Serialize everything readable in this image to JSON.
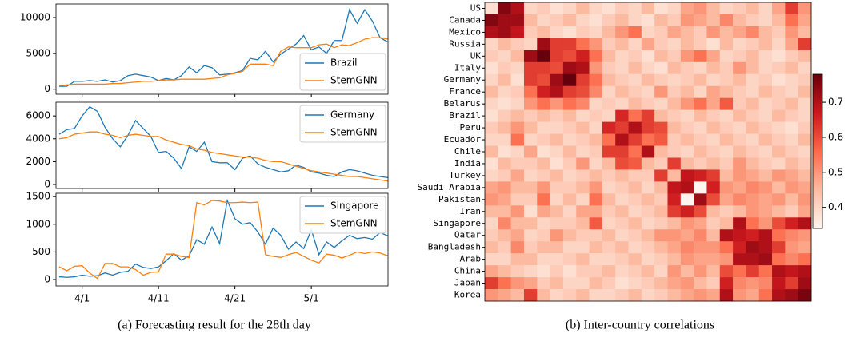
{
  "chart_data": [
    {
      "type": "line",
      "legend": "lower right",
      "ylim": [
        -700,
        11900
      ],
      "yticks": [
        0,
        5000,
        10000
      ],
      "x": [
        "3/29",
        "3/30",
        "3/31",
        "4/1",
        "4/2",
        "4/3",
        "4/4",
        "4/5",
        "4/6",
        "4/7",
        "4/8",
        "4/9",
        "4/10",
        "4/11",
        "4/12",
        "4/13",
        "4/14",
        "4/15",
        "4/16",
        "4/17",
        "4/18",
        "4/19",
        "4/20",
        "4/21",
        "4/22",
        "4/23",
        "4/24",
        "4/25",
        "4/26",
        "4/27",
        "4/28",
        "4/29",
        "4/30",
        "5/1",
        "5/2",
        "5/3",
        "5/4",
        "5/5",
        "5/6",
        "5/7",
        "5/8",
        "5/9",
        "5/10",
        "5/11"
      ],
      "series": [
        {
          "name": "Brazil",
          "color": "#1f77b4",
          "values": [
            400,
            400,
            1100,
            1100,
            1200,
            1100,
            1300,
            1000,
            1200,
            1900,
            2100,
            1900,
            1700,
            1200,
            1500,
            1300,
            1900,
            3100,
            2300,
            3300,
            3000,
            2000,
            2100,
            2300,
            2600,
            4300,
            4100,
            5300,
            3800,
            4900,
            5600,
            6300,
            7500,
            5500,
            5900,
            5000,
            6800,
            6800,
            11100,
            9200,
            11100,
            9500,
            7200,
            6600
          ]
        },
        {
          "name": "StemGNN",
          "color": "#ff7f0e",
          "values": [
            500,
            600,
            700,
            700,
            700,
            700,
            700,
            800,
            800,
            900,
            1000,
            1100,
            1100,
            1200,
            1300,
            1300,
            1400,
            1400,
            1400,
            1400,
            1500,
            1600,
            2000,
            2200,
            2500,
            3500,
            3500,
            3500,
            3300,
            5300,
            5900,
            5800,
            5800,
            5800,
            6200,
            6300,
            5800,
            6200,
            6100,
            6500,
            7000,
            7200,
            7200,
            7000
          ]
        }
      ]
    },
    {
      "type": "line",
      "legend": "upper right",
      "ylim": [
        -350,
        7200
      ],
      "yticks": [
        0,
        2000,
        4000,
        6000
      ],
      "x": [
        "3/29",
        "3/30",
        "3/31",
        "4/1",
        "4/2",
        "4/3",
        "4/4",
        "4/5",
        "4/6",
        "4/7",
        "4/8",
        "4/9",
        "4/10",
        "4/11",
        "4/12",
        "4/13",
        "4/14",
        "4/15",
        "4/16",
        "4/17",
        "4/18",
        "4/19",
        "4/20",
        "4/21",
        "4/22",
        "4/23",
        "4/24",
        "4/25",
        "4/26",
        "4/27",
        "4/28",
        "4/29",
        "4/30",
        "5/1",
        "5/2",
        "5/3",
        "5/4",
        "5/5",
        "5/6",
        "5/7",
        "5/8",
        "5/9",
        "5/10",
        "5/11"
      ],
      "series": [
        {
          "name": "Germany",
          "color": "#1f77b4",
          "values": [
            4400,
            4800,
            4900,
            6000,
            6800,
            6400,
            5000,
            4000,
            3300,
            4300,
            5600,
            4900,
            4200,
            2800,
            2900,
            2300,
            1400,
            3300,
            2900,
            3700,
            2000,
            1900,
            1900,
            1300,
            2300,
            2500,
            1800,
            1500,
            1300,
            1100,
            1200,
            1700,
            1500,
            1100,
            1000,
            800,
            700,
            1100,
            1300,
            1200,
            1000,
            800,
            700,
            600
          ]
        },
        {
          "name": "StemGNN",
          "color": "#ff7f0e",
          "values": [
            4000,
            4100,
            4400,
            4500,
            4600,
            4600,
            4400,
            4300,
            4100,
            4300,
            4400,
            4300,
            4200,
            4200,
            3900,
            3700,
            3500,
            3400,
            3100,
            3000,
            2800,
            2700,
            2600,
            2500,
            2400,
            2400,
            2300,
            2100,
            2000,
            2000,
            1800,
            1600,
            1400,
            1200,
            1100,
            1000,
            900,
            800,
            700,
            700,
            600,
            500,
            400,
            300
          ]
        }
      ]
    },
    {
      "type": "line",
      "legend": "upper right",
      "ylim": [
        -115,
        1560
      ],
      "yticks": [
        0,
        500,
        1000,
        1500
      ],
      "xticks": [
        "4/1",
        "4/11",
        "4/21",
        "5/1"
      ],
      "x": [
        "3/29",
        "3/30",
        "3/31",
        "4/1",
        "4/2",
        "4/3",
        "4/4",
        "4/5",
        "4/6",
        "4/7",
        "4/8",
        "4/9",
        "4/10",
        "4/11",
        "4/12",
        "4/13",
        "4/14",
        "4/15",
        "4/16",
        "4/17",
        "4/18",
        "4/19",
        "4/20",
        "4/21",
        "4/22",
        "4/23",
        "4/24",
        "4/25",
        "4/26",
        "4/27",
        "4/28",
        "4/29",
        "4/30",
        "5/1",
        "5/2",
        "5/3",
        "5/4",
        "5/5",
        "5/6",
        "5/7",
        "5/8",
        "5/9",
        "5/10",
        "5/11"
      ],
      "series": [
        {
          "name": "Singapore",
          "color": "#1f77b4",
          "values": [
            50,
            40,
            50,
            80,
            60,
            70,
            120,
            80,
            130,
            150,
            280,
            220,
            200,
            230,
            340,
            470,
            350,
            430,
            720,
            640,
            950,
            650,
            1430,
            1100,
            1000,
            1030,
            860,
            640,
            930,
            800,
            550,
            680,
            560,
            900,
            450,
            680,
            580,
            700,
            800,
            740,
            760,
            730,
            850,
            790
          ]
        },
        {
          "name": "StemGNN",
          "color": "#ff7f0e",
          "values": [
            230,
            160,
            240,
            250,
            120,
            20,
            290,
            290,
            230,
            230,
            180,
            80,
            130,
            140,
            460,
            460,
            420,
            400,
            1390,
            1350,
            1430,
            1420,
            1390,
            1390,
            1400,
            1390,
            1400,
            450,
            420,
            400,
            450,
            490,
            420,
            350,
            300,
            460,
            440,
            390,
            440,
            500,
            470,
            500,
            480,
            430
          ]
        }
      ]
    },
    {
      "type": "heatmap",
      "colormap": "Reds",
      "vlim": [
        0.34,
        0.78
      ],
      "colorbar_ticks": [
        0.4,
        0.5,
        0.6,
        0.7
      ],
      "rows": [
        "US",
        "Canada",
        "Mexico",
        "Russia",
        "UK",
        "Italy",
        "Germany",
        "France",
        "Belarus",
        "Brazil",
        "Peru",
        "Ecuador",
        "Chile",
        "India",
        "Turkey",
        "Saudi Arabia",
        "Pakistan",
        "Iran",
        "Singapore",
        "Qatar",
        "Bangladesh",
        "Arab",
        "China",
        "Japan",
        "Korea"
      ],
      "values": [
        [
          0.38,
          0.75,
          0.7,
          0.4,
          0.42,
          0.38,
          0.4,
          0.45,
          0.4,
          0.38,
          0.42,
          0.4,
          0.45,
          0.38,
          0.4,
          0.48,
          0.5,
          0.45,
          0.4,
          0.42,
          0.45,
          0.4,
          0.48,
          0.62,
          0.5
        ],
        [
          0.75,
          0.72,
          0.72,
          0.45,
          0.4,
          0.42,
          0.45,
          0.4,
          0.38,
          0.42,
          0.45,
          0.4,
          0.38,
          0.45,
          0.42,
          0.5,
          0.48,
          0.45,
          0.52,
          0.45,
          0.42,
          0.4,
          0.45,
          0.55,
          0.48
        ],
        [
          0.7,
          0.72,
          0.68,
          0.42,
          0.45,
          0.4,
          0.38,
          0.42,
          0.4,
          0.45,
          0.5,
          0.55,
          0.4,
          0.42,
          0.48,
          0.45,
          0.42,
          0.5,
          0.45,
          0.48,
          0.52,
          0.45,
          0.42,
          0.5,
          0.45
        ],
        [
          0.4,
          0.45,
          0.42,
          0.4,
          0.72,
          0.62,
          0.62,
          0.55,
          0.5,
          0.42,
          0.45,
          0.4,
          0.48,
          0.42,
          0.4,
          0.45,
          0.42,
          0.38,
          0.45,
          0.4,
          0.42,
          0.45,
          0.4,
          0.48,
          0.62
        ],
        [
          0.42,
          0.4,
          0.45,
          0.72,
          0.78,
          0.62,
          0.6,
          0.66,
          0.55,
          0.45,
          0.4,
          0.42,
          0.38,
          0.45,
          0.42,
          0.5,
          0.55,
          0.48,
          0.4,
          0.42,
          0.45,
          0.4,
          0.38,
          0.42,
          0.45
        ],
        [
          0.38,
          0.42,
          0.4,
          0.62,
          0.62,
          0.6,
          0.72,
          0.7,
          0.5,
          0.42,
          0.4,
          0.45,
          0.4,
          0.38,
          0.45,
          0.42,
          0.4,
          0.45,
          0.42,
          0.5,
          0.45,
          0.4,
          0.42,
          0.45,
          0.4
        ],
        [
          0.4,
          0.45,
          0.38,
          0.62,
          0.6,
          0.72,
          0.78,
          0.62,
          0.55,
          0.45,
          0.42,
          0.4,
          0.45,
          0.42,
          0.4,
          0.42,
          0.45,
          0.4,
          0.42,
          0.45,
          0.4,
          0.42,
          0.38,
          0.4,
          0.42
        ],
        [
          0.45,
          0.4,
          0.42,
          0.55,
          0.66,
          0.7,
          0.62,
          0.6,
          0.52,
          0.4,
          0.45,
          0.42,
          0.4,
          0.5,
          0.42,
          0.45,
          0.4,
          0.48,
          0.45,
          0.42,
          0.4,
          0.45,
          0.42,
          0.4,
          0.45
        ],
        [
          0.4,
          0.38,
          0.4,
          0.5,
          0.55,
          0.5,
          0.55,
          0.52,
          0.4,
          0.42,
          0.4,
          0.45,
          0.42,
          0.4,
          0.45,
          0.5,
          0.55,
          0.48,
          0.58,
          0.42,
          0.45,
          0.4,
          0.42,
          0.45,
          0.4
        ],
        [
          0.38,
          0.42,
          0.45,
          0.42,
          0.45,
          0.42,
          0.45,
          0.4,
          0.42,
          0.4,
          0.65,
          0.55,
          0.62,
          0.45,
          0.42,
          0.4,
          0.45,
          0.42,
          0.4,
          0.45,
          0.42,
          0.4,
          0.45,
          0.42,
          0.4
        ],
        [
          0.42,
          0.45,
          0.5,
          0.45,
          0.4,
          0.4,
          0.42,
          0.45,
          0.4,
          0.65,
          0.62,
          0.7,
          0.62,
          0.6,
          0.45,
          0.42,
          0.4,
          0.45,
          0.42,
          0.4,
          0.45,
          0.42,
          0.4,
          0.38,
          0.42
        ],
        [
          0.4,
          0.4,
          0.55,
          0.4,
          0.42,
          0.45,
          0.4,
          0.42,
          0.45,
          0.55,
          0.7,
          0.62,
          0.55,
          0.58,
          0.42,
          0.45,
          0.42,
          0.4,
          0.45,
          0.42,
          0.4,
          0.45,
          0.42,
          0.4,
          0.45
        ],
        [
          0.45,
          0.38,
          0.4,
          0.48,
          0.38,
          0.4,
          0.45,
          0.4,
          0.42,
          0.62,
          0.62,
          0.55,
          0.7,
          0.45,
          0.42,
          0.4,
          0.45,
          0.42,
          0.4,
          0.45,
          0.42,
          0.4,
          0.45,
          0.42,
          0.4
        ],
        [
          0.38,
          0.45,
          0.42,
          0.42,
          0.45,
          0.38,
          0.42,
          0.5,
          0.4,
          0.45,
          0.6,
          0.58,
          0.45,
          0.42,
          0.62,
          0.45,
          0.42,
          0.45,
          0.42,
          0.5,
          0.45,
          0.42,
          0.4,
          0.45,
          0.42
        ],
        [
          0.4,
          0.42,
          0.48,
          0.4,
          0.42,
          0.45,
          0.4,
          0.42,
          0.45,
          0.42,
          0.45,
          0.42,
          0.42,
          0.62,
          0.45,
          0.68,
          0.66,
          0.62,
          0.45,
          0.5,
          0.48,
          0.45,
          0.5,
          0.48,
          0.45
        ],
        [
          0.48,
          0.5,
          0.45,
          0.45,
          0.5,
          0.42,
          0.42,
          0.45,
          0.5,
          0.4,
          0.42,
          0.45,
          0.4,
          0.45,
          0.68,
          0.7,
          0.34,
          0.66,
          0.5,
          0.48,
          0.52,
          0.5,
          0.45,
          0.5,
          0.48
        ],
        [
          0.5,
          0.48,
          0.42,
          0.42,
          0.55,
          0.4,
          0.45,
          0.4,
          0.55,
          0.45,
          0.4,
          0.42,
          0.45,
          0.42,
          0.66,
          0.34,
          0.72,
          0.6,
          0.48,
          0.52,
          0.5,
          0.48,
          0.5,
          0.45,
          0.5
        ],
        [
          0.45,
          0.45,
          0.5,
          0.38,
          0.48,
          0.45,
          0.4,
          0.48,
          0.48,
          0.42,
          0.45,
          0.4,
          0.42,
          0.45,
          0.62,
          0.66,
          0.6,
          0.45,
          0.42,
          0.45,
          0.5,
          0.48,
          0.45,
          0.42,
          0.48
        ],
        [
          0.4,
          0.52,
          0.45,
          0.45,
          0.4,
          0.42,
          0.42,
          0.45,
          0.58,
          0.4,
          0.42,
          0.45,
          0.4,
          0.42,
          0.45,
          0.5,
          0.48,
          0.42,
          0.45,
          0.7,
          0.55,
          0.5,
          0.6,
          0.66,
          0.7
        ],
        [
          0.42,
          0.45,
          0.48,
          0.4,
          0.42,
          0.5,
          0.45,
          0.42,
          0.42,
          0.45,
          0.4,
          0.42,
          0.45,
          0.5,
          0.5,
          0.48,
          0.52,
          0.45,
          0.7,
          0.68,
          0.66,
          0.7,
          0.55,
          0.52,
          0.5
        ],
        [
          0.45,
          0.42,
          0.52,
          0.42,
          0.45,
          0.45,
          0.4,
          0.4,
          0.45,
          0.42,
          0.45,
          0.4,
          0.42,
          0.45,
          0.48,
          0.52,
          0.5,
          0.5,
          0.55,
          0.66,
          0.72,
          0.7,
          0.62,
          0.5,
          0.48
        ],
        [
          0.4,
          0.4,
          0.45,
          0.45,
          0.4,
          0.4,
          0.42,
          0.45,
          0.4,
          0.4,
          0.42,
          0.45,
          0.4,
          0.42,
          0.45,
          0.5,
          0.48,
          0.48,
          0.5,
          0.7,
          0.7,
          0.72,
          0.55,
          0.52,
          0.55
        ],
        [
          0.48,
          0.45,
          0.42,
          0.4,
          0.38,
          0.42,
          0.38,
          0.42,
          0.42,
          0.45,
          0.4,
          0.42,
          0.45,
          0.4,
          0.5,
          0.45,
          0.5,
          0.45,
          0.6,
          0.55,
          0.62,
          0.55,
          0.7,
          0.68,
          0.7
        ],
        [
          0.62,
          0.55,
          0.5,
          0.48,
          0.42,
          0.45,
          0.4,
          0.4,
          0.45,
          0.42,
          0.38,
          0.4,
          0.42,
          0.45,
          0.48,
          0.5,
          0.45,
          0.42,
          0.66,
          0.52,
          0.5,
          0.52,
          0.68,
          0.62,
          0.72
        ],
        [
          0.5,
          0.48,
          0.45,
          0.62,
          0.45,
          0.4,
          0.42,
          0.45,
          0.4,
          0.4,
          0.42,
          0.45,
          0.4,
          0.42,
          0.45,
          0.48,
          0.5,
          0.48,
          0.7,
          0.5,
          0.48,
          0.55,
          0.7,
          0.72,
          0.76
        ]
      ]
    }
  ],
  "captions": [
    "(a) Forecasting result for the 28th day",
    "(b) Inter-country correlations"
  ]
}
